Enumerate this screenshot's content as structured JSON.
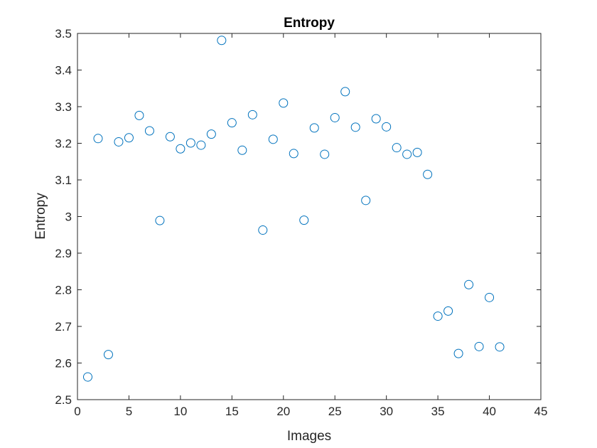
{
  "chart_data": {
    "type": "scatter",
    "title": "Entropy",
    "xlabel": "Images",
    "ylabel": "Entropy",
    "xlim": [
      0,
      45
    ],
    "ylim": [
      2.5,
      3.5
    ],
    "xticks": [
      0,
      5,
      10,
      15,
      20,
      25,
      30,
      35,
      40,
      45
    ],
    "yticks": [
      2.5,
      2.6,
      2.7,
      2.8,
      2.9,
      3,
      3.1,
      3.2,
      3.3,
      3.4,
      3.5
    ],
    "grid": false,
    "marker": "open-circle",
    "series_color": "#0072BD",
    "x": [
      1,
      2,
      3,
      4,
      5,
      6,
      7,
      8,
      9,
      10,
      11,
      12,
      13,
      14,
      15,
      16,
      17,
      18,
      19,
      20,
      21,
      22,
      23,
      24,
      25,
      26,
      27,
      28,
      29,
      30,
      31,
      32,
      33,
      34,
      35,
      36,
      37,
      38,
      39,
      40,
      41
    ],
    "y": [
      2.562,
      3.213,
      2.623,
      3.204,
      3.215,
      3.276,
      3.234,
      2.989,
      3.218,
      3.185,
      3.201,
      3.195,
      3.225,
      3.481,
      3.256,
      3.181,
      3.278,
      2.963,
      3.211,
      3.31,
      3.172,
      2.99,
      3.242,
      3.17,
      3.27,
      3.341,
      3.244,
      3.044,
      3.267,
      3.245,
      3.188,
      3.17,
      3.175,
      3.115,
      2.728,
      2.742,
      2.626,
      2.814,
      2.645,
      2.779,
      2.644
    ]
  }
}
